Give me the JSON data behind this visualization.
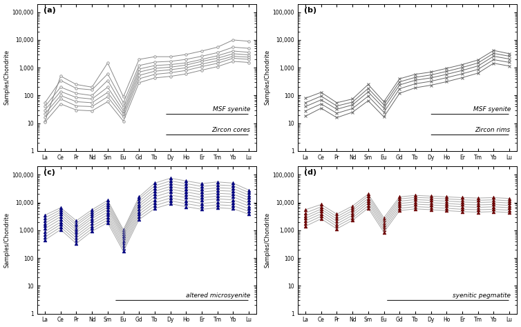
{
  "elements": [
    "La",
    "Ce",
    "Pr",
    "Nd",
    "Sm",
    "Eu",
    "Gd",
    "Tb",
    "Dy",
    "Ho",
    "Er",
    "Tm",
    "Yb",
    "Lu"
  ],
  "panel_a_label": "(a)",
  "panel_b_label": "(b)",
  "panel_c_label": "(c)",
  "panel_d_label": "(d)",
  "panel_a_title1": "MSF syenite",
  "panel_a_title2": "Zircon cores",
  "panel_b_title1": "MSF syenite",
  "panel_b_title2": "Zircon rims",
  "panel_c_title": "altered microsyenite",
  "panel_d_title": "syenitic pegmatite",
  "ylabel": "Samples/Chondrite",
  "ylim": [
    1,
    200000
  ],
  "panel_a_color": "#888888",
  "panel_b_color": "#666666",
  "panel_c_color": "#000080",
  "panel_d_color": "#6B0000",
  "panel_a_series": [
    [
      12,
      500,
      250,
      200,
      1500,
      90,
      2000,
      2500,
      2500,
      3000,
      4000,
      5500,
      10000,
      9000
    ],
    [
      55,
      350,
      180,
      160,
      600,
      55,
      1200,
      1600,
      1700,
      2000,
      2600,
      3500,
      5500,
      5000
    ],
    [
      40,
      200,
      120,
      100,
      350,
      38,
      900,
      1200,
      1300,
      1500,
      2000,
      2700,
      4000,
      3600
    ],
    [
      30,
      140,
      85,
      75,
      200,
      28,
      700,
      950,
      1050,
      1250,
      1700,
      2200,
      3200,
      2900
    ],
    [
      22,
      100,
      60,
      55,
      130,
      22,
      530,
      750,
      850,
      1000,
      1350,
      1800,
      2600,
      2400
    ],
    [
      16,
      75,
      42,
      40,
      90,
      17,
      400,
      580,
      660,
      800,
      1100,
      1450,
      2200,
      2000
    ],
    [
      11,
      50,
      30,
      28,
      60,
      12,
      290,
      430,
      490,
      600,
      820,
      1100,
      1700,
      1550
    ]
  ],
  "panel_b_series": [
    [
      80,
      130,
      55,
      75,
      250,
      60,
      400,
      580,
      700,
      950,
      1300,
      1900,
      4200,
      3200
    ],
    [
      55,
      95,
      42,
      58,
      180,
      46,
      310,
      450,
      550,
      740,
      1020,
      1490,
      3300,
      2600
    ],
    [
      40,
      70,
      32,
      46,
      135,
      35,
      240,
      355,
      430,
      580,
      800,
      1160,
      2600,
      2060
    ],
    [
      28,
      50,
      23,
      34,
      95,
      25,
      175,
      265,
      325,
      440,
      605,
      875,
      1960,
      1560
    ],
    [
      18,
      35,
      16,
      25,
      65,
      17,
      120,
      190,
      235,
      315,
      440,
      640,
      1450,
      1150
    ]
  ],
  "panel_c_series": [
    [
      3500,
      6500,
      2200,
      5500,
      12000,
      1050,
      16000,
      50000,
      75000,
      60000,
      48000,
      55000,
      50000,
      28000
    ],
    [
      2800,
      5500,
      1800,
      4600,
      10000,
      900,
      13500,
      40000,
      60000,
      48000,
      38000,
      43000,
      40000,
      23000
    ],
    [
      2200,
      4600,
      1500,
      3900,
      8200,
      760,
      11000,
      32000,
      48000,
      38000,
      30000,
      34000,
      32000,
      18500
    ],
    [
      1800,
      3800,
      1200,
      3200,
      6800,
      640,
      8800,
      25500,
      38000,
      30000,
      24000,
      27000,
      25500,
      15000
    ],
    [
      1450,
      3100,
      1000,
      2650,
      5600,
      530,
      7200,
      20500,
      30500,
      24000,
      19000,
      21500,
      20000,
      12000
    ],
    [
      1150,
      2500,
      820,
      2150,
      4500,
      430,
      5800,
      16000,
      24000,
      19000,
      15000,
      17000,
      16000,
      9500
    ],
    [
      900,
      2000,
      650,
      1750,
      3600,
      345,
      4700,
      12500,
      18500,
      15000,
      12000,
      13500,
      12500,
      7500
    ],
    [
      720,
      1620,
      530,
      1420,
      2900,
      275,
      3800,
      9800,
      14500,
      11500,
      9200,
      10500,
      9800,
      6000
    ],
    [
      570,
      1310,
      420,
      1150,
      2350,
      220,
      3050,
      7700,
      11500,
      9100,
      7300,
      8300,
      7700,
      4800
    ],
    [
      450,
      1060,
      335,
      930,
      1880,
      175,
      2450,
      6100,
      9000,
      7100,
      5700,
      6500,
      6000,
      3800
    ]
  ],
  "panel_d_series": [
    [
      5500,
      8500,
      3800,
      7500,
      20000,
      2800,
      16000,
      18000,
      17000,
      16000,
      15000,
      14500,
      15000,
      14000
    ],
    [
      4200,
      7000,
      3100,
      6200,
      17000,
      2300,
      13500,
      15200,
      14500,
      13500,
      12500,
      12000,
      12500,
      11500
    ],
    [
      3300,
      5800,
      2550,
      5100,
      14000,
      1900,
      11200,
      12700,
      12000,
      11200,
      10400,
      10000,
      10400,
      9600
    ],
    [
      2700,
      4800,
      2100,
      4200,
      11500,
      1560,
      9200,
      10500,
      9900,
      9200,
      8500,
      8200,
      8500,
      7900
    ],
    [
      2200,
      3900,
      1700,
      3450,
      9500,
      1280,
      7600,
      8700,
      8200,
      7600,
      7000,
      6700,
      7000,
      6500
    ],
    [
      1750,
      3200,
      1400,
      2800,
      7700,
      1040,
      6200,
      7100,
      6700,
      6200,
      5700,
      5500,
      5700,
      5300
    ],
    [
      1400,
      2600,
      1130,
      2300,
      6300,
      850,
      5100,
      5900,
      5500,
      5100,
      4700,
      4500,
      4700,
      4350
    ]
  ]
}
